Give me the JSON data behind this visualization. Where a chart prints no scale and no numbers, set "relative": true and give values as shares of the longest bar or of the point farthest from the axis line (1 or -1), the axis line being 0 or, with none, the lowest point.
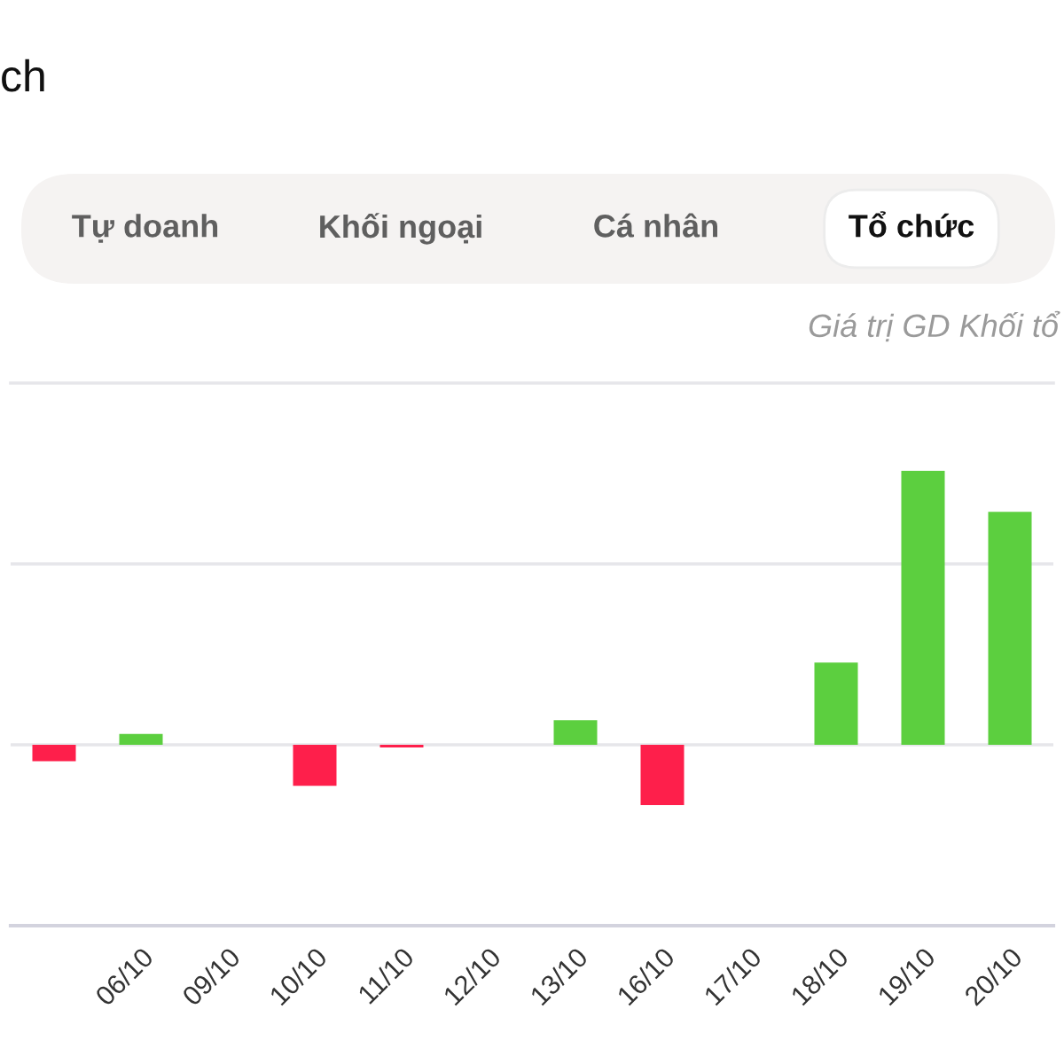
{
  "chart_data": {
    "type": "bar",
    "title": "ch",
    "subtitle": "Giá trị GD Khối tổ",
    "annotations": [
      "Tự doanh",
      "Khối ngoại",
      "Cá nhân",
      "Tổ chức"
    ],
    "categories": [
      null,
      "06/10",
      "09/10",
      "10/10",
      "11/10",
      "12/10",
      "13/10",
      "16/10",
      "17/10",
      "18/10",
      "19/10",
      "20/10"
    ],
    "values": [
      -0.06,
      0.04,
      null,
      -0.15,
      -0.01,
      null,
      0.09,
      -0.22,
      null,
      0.3,
      1,
      0.85
    ],
    "colors": [
      "#fe1f4b",
      "#5ccf3f",
      "#5ccf3f",
      "#fe1f4b",
      "#fe1f4b",
      "#5ccf3f",
      "#5ccf3f",
      "#fe1f4b",
      "#5ccf3f",
      "#5ccf3f",
      "#5ccf3f",
      "#5ccf3f"
    ],
    "relative": true,
    "ref_lines": [
      {
        "axis": "y",
        "value": 0.66,
        "color": "#e6e6ea"
      }
    ],
    "tick_labels": "x"
  }
}
